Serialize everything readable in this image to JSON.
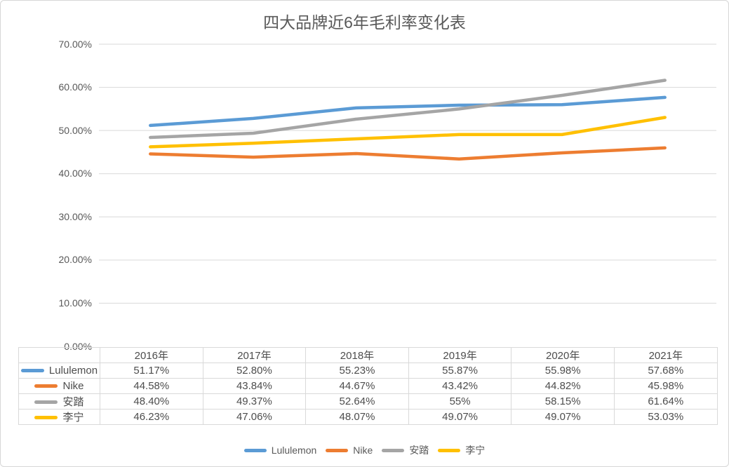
{
  "chart_data": {
    "type": "line",
    "title": "四大品牌近6年毛利率变化表",
    "categories": [
      "2016年",
      "2017年",
      "2018年",
      "2019年",
      "2020年",
      "2021年"
    ],
    "series": [
      {
        "name": "Lululemon",
        "color": "#5B9BD5",
        "values": [
          51.17,
          52.8,
          55.23,
          55.87,
          55.98,
          57.68
        ]
      },
      {
        "name": "Nike",
        "color": "#ED7D31",
        "values": [
          44.58,
          43.84,
          44.67,
          43.42,
          44.82,
          45.98
        ]
      },
      {
        "name": "安踏",
        "color": "#A5A5A5",
        "values": [
          48.4,
          49.37,
          52.64,
          55.0,
          58.15,
          61.64
        ]
      },
      {
        "name": "李宁",
        "color": "#FFC000",
        "values": [
          46.23,
          47.06,
          48.07,
          49.07,
          49.07,
          53.03
        ]
      }
    ],
    "xlabel": "",
    "ylabel": "",
    "ylim": [
      0,
      70
    ],
    "yticks": [
      "70.00%",
      "60.00%",
      "50.00%",
      "40.00%",
      "30.00%",
      "20.00%",
      "10.00%",
      "0.00%"
    ],
    "grid": true,
    "gridline_color": "#D9D9D9",
    "legend_position": "bottom"
  },
  "table": {
    "headers": [
      "2016年",
      "2017年",
      "2018年",
      "2019年",
      "2020年",
      "2021年"
    ],
    "rows": [
      {
        "label": "Lululemon",
        "color": "#5B9BD5",
        "cells": [
          "51.17%",
          "52.80%",
          "55.23%",
          "55.87%",
          "55.98%",
          "57.68%"
        ]
      },
      {
        "label": "Nike",
        "color": "#ED7D31",
        "cells": [
          "44.58%",
          "43.84%",
          "44.67%",
          "43.42%",
          "44.82%",
          "45.98%"
        ]
      },
      {
        "label": "安踏",
        "color": "#A5A5A5",
        "cells": [
          "48.40%",
          "49.37%",
          "52.64%",
          "55%",
          "58.15%",
          "61.64%"
        ]
      },
      {
        "label": "李宁",
        "color": "#FFC000",
        "cells": [
          "46.23%",
          "47.06%",
          "48.07%",
          "49.07%",
          "49.07%",
          "53.03%"
        ]
      }
    ]
  },
  "legend": {
    "items": [
      {
        "label": "Lululemon",
        "color": "#5B9BD5"
      },
      {
        "label": "Nike",
        "color": "#ED7D31"
      },
      {
        "label": "安踏",
        "color": "#A5A5A5"
      },
      {
        "label": "李宁",
        "color": "#FFC000"
      }
    ]
  },
  "text_color": "#595959"
}
